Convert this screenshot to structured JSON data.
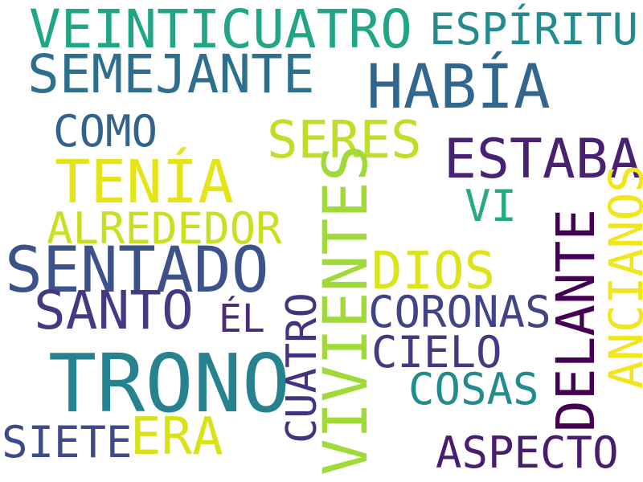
{
  "word_cloud": {
    "background": "#ffffff",
    "words": {
      "veinticuatro": {
        "text": "VEINTICUATRO",
        "color": "#21a685"
      },
      "espiritu": {
        "text": "ESPÍRITU",
        "color": "#238a8d"
      },
      "semejante": {
        "text": "SEMEJANTE",
        "color": "#2d708e"
      },
      "habia": {
        "text": "HABÍA",
        "color": "#31668e"
      },
      "como": {
        "text": "COMO",
        "color": "#33638d"
      },
      "seres": {
        "text": "SERES",
        "color": "#bddf26"
      },
      "estaba": {
        "text": "ESTABA",
        "color": "#482173"
      },
      "tenia": {
        "text": "TENÍA",
        "color": "#e5e419"
      },
      "vi": {
        "text": "VI",
        "color": "#25ab82"
      },
      "alrededor": {
        "text": "ALREDEDOR",
        "color": "#c8e020"
      },
      "sentado": {
        "text": "SENTADO",
        "color": "#3b528b"
      },
      "dios": {
        "text": "DIOS",
        "color": "#dde318"
      },
      "santo": {
        "text": "SANTO",
        "color": "#443983"
      },
      "el": {
        "text": "ÉL",
        "color": "#472d7b"
      },
      "coronas": {
        "text": "CORONAS",
        "color": "#414487"
      },
      "cielo": {
        "text": "CIELO",
        "color": "#443a83"
      },
      "trono": {
        "text": "TRONO",
        "color": "#26828e"
      },
      "cosas": {
        "text": "COSAS",
        "color": "#228c8d"
      },
      "era": {
        "text": "ERA",
        "color": "#d8e219"
      },
      "siete": {
        "text": "SIETE",
        "color": "#3e4a89"
      },
      "aspecto": {
        "text": "ASPECTO",
        "color": "#481c6e"
      },
      "vivientes": {
        "text": "VIVIENTES",
        "color": "#a0da39"
      },
      "cuatro": {
        "text": "CUATRO",
        "color": "#46337f"
      },
      "delante": {
        "text": "DELANTE",
        "color": "#440154"
      },
      "ancianos": {
        "text": "ANCIANOS",
        "color": "#f1e51d"
      }
    }
  }
}
